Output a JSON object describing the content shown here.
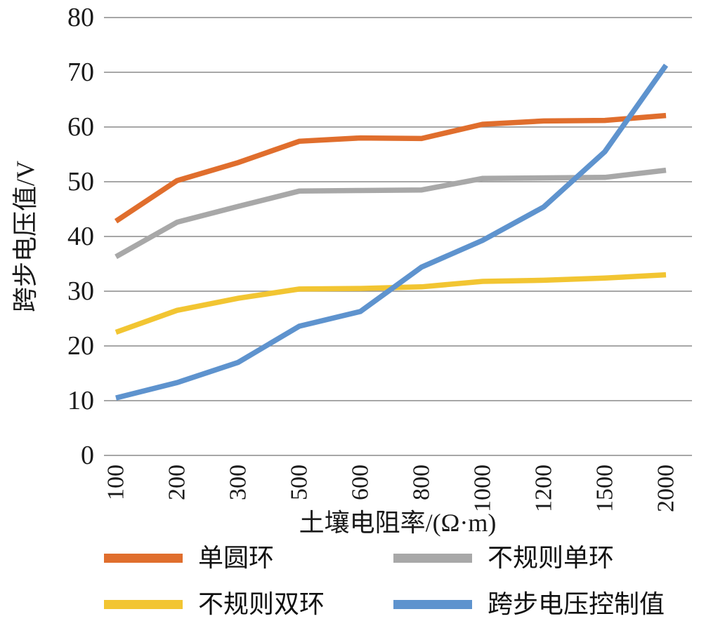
{
  "chart_data": {
    "type": "line",
    "title": "",
    "xlabel": "土壤电阻率/(Ω·m)",
    "ylabel": "跨步电压值/V",
    "categories": [
      100,
      200,
      300,
      500,
      600,
      800,
      1000,
      1200,
      1500,
      2000
    ],
    "x_tick_labels": [
      "100",
      "200",
      "300",
      "500",
      "600",
      "800",
      "1000",
      "1200",
      "1500",
      "2000"
    ],
    "y_ticks": [
      0,
      10,
      20,
      30,
      40,
      50,
      60,
      70,
      80
    ],
    "ylim": [
      0,
      80
    ],
    "grid": "horizontal-only",
    "legend_position": "bottom",
    "gridline_color": "#8a8a8a",
    "series": [
      {
        "name": "单圆环",
        "color": "#E06E2D",
        "values": [
          42.8,
          50.2,
          53.5,
          57.4,
          58.0,
          57.9,
          60.5,
          61.1,
          61.2,
          62.1
        ]
      },
      {
        "name": "不规则单环",
        "color": "#A8A8A8",
        "values": [
          36.3,
          42.6,
          45.5,
          48.3,
          48.4,
          48.5,
          50.6,
          50.7,
          50.8,
          52.1
        ]
      },
      {
        "name": "不规则双环",
        "color": "#F2C532",
        "values": [
          22.5,
          26.5,
          28.7,
          30.4,
          30.5,
          30.8,
          31.8,
          32.0,
          32.4,
          33.0
        ]
      },
      {
        "name": "跨步电压控制值",
        "color": "#5E93CE",
        "values": [
          10.5,
          13.3,
          17.0,
          23.6,
          26.3,
          34.4,
          39.3,
          45.4,
          55.5,
          71.3
        ]
      }
    ]
  }
}
